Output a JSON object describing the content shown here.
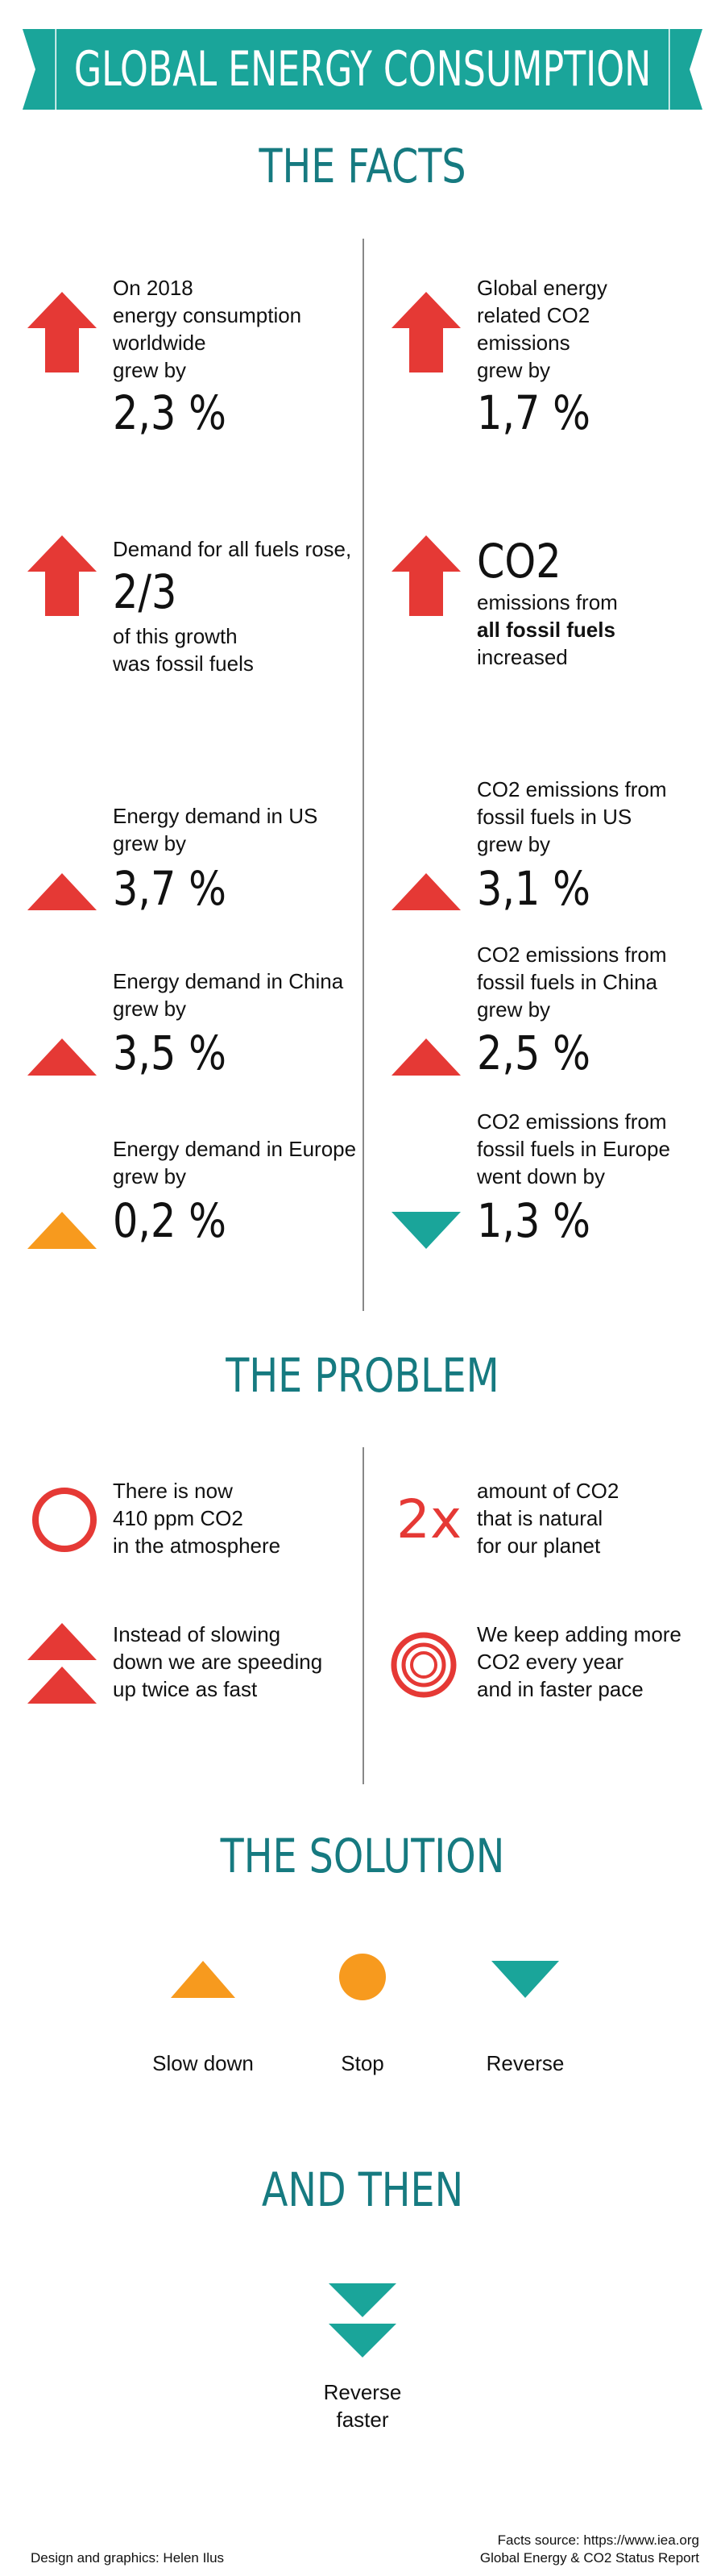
{
  "banner": {
    "title": "GLOBAL ENERGY CONSUMPTION",
    "color": "#1aa59a"
  },
  "colors": {
    "teal": "#1aa59a",
    "heading": "#167a80",
    "red": "#e53935",
    "orange": "#f79a1e"
  },
  "facts": {
    "heading": "THE FACTS",
    "f1": {
      "lines": [
        "On 2018",
        "energy consumption",
        "worldwide",
        "grew by"
      ],
      "value": "2,3 %",
      "icon": "up-arrow-icon"
    },
    "f2": {
      "lines": [
        "Global energy",
        "related CO2",
        "emissions",
        "grew by"
      ],
      "value": "1,7 %",
      "icon": "up-arrow-icon"
    },
    "f3": {
      "line1": "Demand for all fuels rose,",
      "value": "2/3",
      "line2": "of this growth",
      "line3": "was fossil fuels",
      "icon": "up-arrow-icon"
    },
    "f4": {
      "value": "CO2",
      "line1": "emissions from",
      "line2": "all fossil fuels",
      "line3": "increased",
      "icon": "up-arrow-icon"
    },
    "us_energy": {
      "lines": [
        "Energy demand in US",
        "grew by"
      ],
      "value": "3,7 %",
      "icon": "triangle-up-icon"
    },
    "us_co2": {
      "lines": [
        "CO2 emissions from",
        "fossil fuels in US",
        "grew by"
      ],
      "value": "3,1 %",
      "icon": "triangle-up-icon"
    },
    "china_energy": {
      "lines": [
        "Energy demand in China",
        "grew by"
      ],
      "value": "3,5 %",
      "icon": "triangle-up-icon"
    },
    "china_co2": {
      "lines": [
        "CO2 emissions from",
        "fossil fuels in China",
        "grew by"
      ],
      "value": "2,5 %",
      "icon": "triangle-up-icon"
    },
    "europe_energy": {
      "lines": [
        "Energy demand in Europe",
        "grew by"
      ],
      "value": "0,2 %",
      "icon": "triangle-up-orange-icon"
    },
    "europe_co2": {
      "lines": [
        "CO2 emissions from",
        "fossil fuels in Europe",
        "went down by"
      ],
      "value": "1,3 %",
      "icon": "triangle-down-teal-icon"
    }
  },
  "problem": {
    "heading": "THE PROBLEM",
    "p1": {
      "lines": [
        "There is now",
        "410 ppm CO2",
        "in the atmosphere"
      ],
      "icon": "circle-icon"
    },
    "p2": {
      "mark": "2x",
      "lines": [
        "amount of CO2",
        "that is natural",
        "for our planet"
      ]
    },
    "p3": {
      "lines": [
        "Instead of slowing",
        "down we are speeding",
        "up twice as fast"
      ],
      "icon": "double-triangle-up-icon"
    },
    "p4": {
      "lines": [
        "We keep adding more",
        "CO2 every year",
        "and in faster pace"
      ],
      "icon": "concentric-circles-icon"
    }
  },
  "solution": {
    "heading": "THE SOLUTION",
    "items": [
      {
        "label": "Slow down",
        "icon": "triangle-up-orange-icon"
      },
      {
        "label": "Stop",
        "icon": "orange-dot-icon"
      },
      {
        "label": "Reverse",
        "icon": "triangle-down-teal-icon"
      }
    ]
  },
  "and_then": {
    "heading": "AND THEN",
    "lines": [
      "Reverse",
      "faster"
    ],
    "icon": "double-triangle-down-icon"
  },
  "footer": {
    "credit": "Design and graphics: Helen Ilus",
    "source1": "Facts source: https://www.iea.org",
    "source2": "Global Energy & CO2 Status Report"
  }
}
